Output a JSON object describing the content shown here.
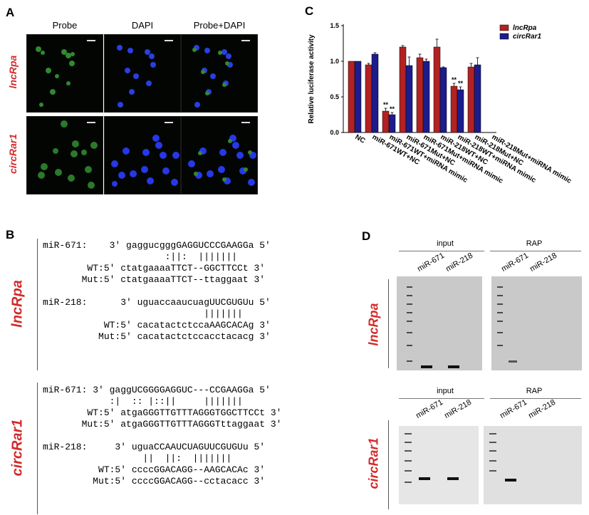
{
  "panel_a": {
    "letter": "A",
    "columns": [
      "Probe",
      "DAPI",
      "Probe+DAPI"
    ],
    "rows": [
      "lncRpa",
      "circRar1"
    ]
  },
  "panel_b": {
    "letter": "B",
    "lncRpa_label": "lncRpa",
    "circRar1_label": "circRar1",
    "lncRpa_lines": [
      "miR-671:    3' gaggucgggGAGGUCCCGAAGGa 5'",
      "                      :||:  |||||||",
      "        WT:5' ctatgaaaaTTCT--GGCTTCCt 3'",
      "       Mut:5' ctatgaaaaTTCT--ttaggaat 3'",
      "",
      "miR-218:      3' uguaccaaucuagUUCGUGUu 5'",
      "                             |||||||",
      "           WT:5' cacatactctccaAAGCACAg 3'",
      "          Mut:5' cacatactctccacctacacg 3'"
    ],
    "circRar1_lines": [
      "miR-671: 3' gaggUCGGGGAGGUC---CCGAAGGa 5'",
      "            :|  :: |::||     |||||||",
      "        WT:5' atgaGGGTTGTTTAGGGTGGCTTCCt 3'",
      "       Mut:5' atgaGGGTTGTTTAGGGTttaggaat 3'",
      "",
      "miR-218:     3' uguaCCAAUCUAGUUCGUGUu 5'",
      "                  ||  ||:  |||||||",
      "          WT:5' ccccGGACAGG--AAGCACAc 3'",
      "         Mut:5' ccccGGACAGG--cctacacc 3'"
    ]
  },
  "panel_c": {
    "letter": "C"
  },
  "chart_data": {
    "type": "bar",
    "title": "",
    "xlabel": "",
    "ylabel": "Relative luciferase activity",
    "ylim": [
      0,
      1.5
    ],
    "yticks": [
      "0.0",
      "0.5",
      "1.0",
      "1.5"
    ],
    "legend_position": "top-right",
    "categories": [
      "NC",
      "miR-671WT+NC",
      "miR-671WT+miRNA mimic",
      "miR-671Mut+NC",
      "miR-671Mut+miRNA mimic",
      "miR-218WT+NC",
      "miR-218WT+miRNA mimic",
      "miR-218Mut+NC",
      "miR-218Mut+miRNA mimic"
    ],
    "series": [
      {
        "name": "lncRpa",
        "color": "#b22222",
        "values": [
          1.0,
          0.95,
          0.3,
          1.2,
          1.05,
          1.2,
          0.65,
          0.92,
          0.0
        ],
        "errors": [
          0.0,
          0.02,
          0.04,
          0.02,
          0.05,
          0.11,
          0.04,
          0.05,
          0.0
        ]
      },
      {
        "name": "circRar1",
        "color": "#1c1c8c",
        "values": [
          1.0,
          1.1,
          0.25,
          0.94,
          1.0,
          0.91,
          0.6,
          0.95,
          0.0
        ],
        "errors": [
          0.0,
          0.02,
          0.03,
          0.12,
          0.03,
          0.01,
          0.04,
          0.1,
          0.0
        ]
      }
    ],
    "annotations": [
      "**",
      "**",
      "**",
      "**"
    ]
  },
  "panel_d": {
    "letter": "D",
    "top_row_label": "lncRpa",
    "bottom_row_label": "circRar1",
    "group_labels": [
      "input",
      "RAP",
      "input",
      "RAP"
    ],
    "lane_labels": [
      "miR-671",
      "miR-218",
      "miR-671",
      "miR-218",
      "miR-671",
      "miR-218",
      "miR-671",
      "miR-218"
    ]
  }
}
